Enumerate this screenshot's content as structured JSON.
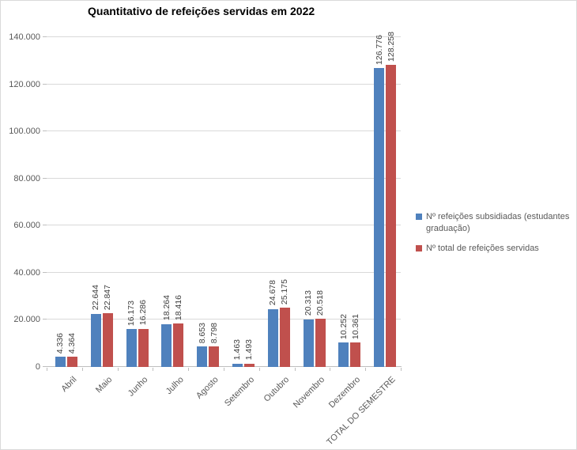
{
  "chart_data": {
    "type": "bar",
    "title": "Quantitativo de refeições servidas em 2022",
    "categories": [
      "Abril",
      "Maio",
      "Junho",
      "Julho",
      "Agosto",
      "Setembro",
      "Outubro",
      "Novembro",
      "Dezembro",
      "TOTAL DO SEMESTRE"
    ],
    "series": [
      {
        "name": "Nº refeições subsidiadas (estudantes graduação)",
        "color": "#4F81BD",
        "values": [
          4336,
          22644,
          16173,
          18264,
          8653,
          1463,
          24678,
          20313,
          10252,
          126776
        ],
        "value_labels": [
          "4.336",
          "22.644",
          "16.173",
          "18.264",
          "8.653",
          "1.463",
          "24.678",
          "20.313",
          "10.252",
          "126.776"
        ]
      },
      {
        "name": "Nº total de refeições servidas",
        "color": "#C0504D",
        "values": [
          4364,
          22847,
          16286,
          18416,
          8798,
          1493,
          25175,
          20518,
          10361,
          128258
        ],
        "value_labels": [
          "4.364",
          "22.847",
          "16.286",
          "18.416",
          "8.798",
          "1.493",
          "25.175",
          "20.518",
          "10.361",
          "128.258"
        ]
      }
    ],
    "y_axis": {
      "min": 0,
      "max": 140000,
      "step": 20000,
      "tick_labels": [
        "0",
        "20.000",
        "40.000",
        "60.000",
        "80.000",
        "100.000",
        "120.000",
        "140.000"
      ]
    },
    "data_labels_rotation": "vertical",
    "x_labels_rotation": -45,
    "legend_position": "right",
    "grid": true,
    "colors": {
      "grid_line": "#D9D9D9",
      "axis_line": "#BFBFBF",
      "axis_text": "#595959",
      "data_label_text": "#404040",
      "title_text": "#000000",
      "border": "#D9D9D9",
      "background": "#FFFFFF"
    }
  }
}
